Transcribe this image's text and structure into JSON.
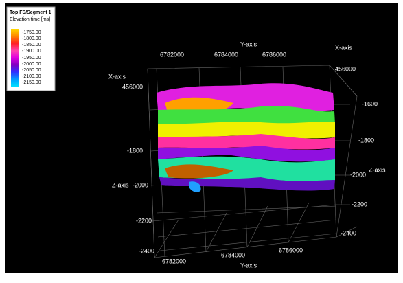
{
  "legend": {
    "title": "Top FS/Segment 1",
    "subtitle": "Elevation time [ms]",
    "entries": [
      "-1750.00",
      "-1800.00",
      "-1850.00",
      "-1900.00",
      "-1950.00",
      "-2000.00",
      "-2050.00",
      "-2100.00",
      "-2150.00"
    ]
  },
  "axes": {
    "top_y": {
      "name": "Y-axis",
      "ticks": [
        "6782000",
        "6784000",
        "6786000"
      ]
    },
    "top_right_x": {
      "name": "X-axis",
      "tick": "456000"
    },
    "left_x": {
      "name": "X-axis",
      "tick": "456000"
    },
    "left_z": {
      "name": "Z-axis",
      "ticks": [
        "-1800",
        "-2000",
        "-2200",
        "-2400"
      ]
    },
    "right_z": {
      "name": "Z-axis",
      "ticks": [
        "-1600",
        "-1800",
        "-2000",
        "-2200",
        "-2400"
      ]
    },
    "bottom_y": {
      "name": "Y-axis",
      "ticks": [
        "6782000",
        "6784000",
        "6786000"
      ]
    }
  }
}
